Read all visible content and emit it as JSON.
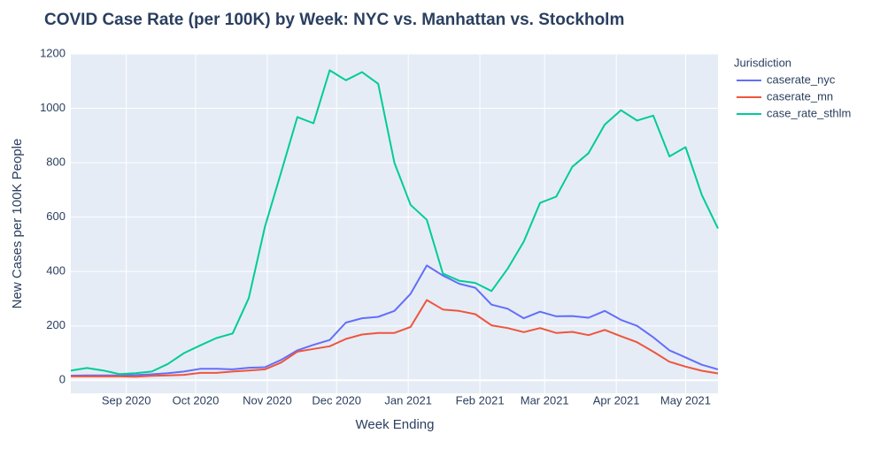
{
  "chart_data": {
    "type": "line",
    "title": "COVID Case Rate (per 100K) by Week: NYC vs. Manhattan vs. Stockholm",
    "x_label": "Week Ending",
    "y_label": "New Cases per 100K People",
    "legend_title": "Jurisdiction",
    "legend_position": "right",
    "grid": true,
    "x": [
      "2020-08-08",
      "2020-08-15",
      "2020-08-22",
      "2020-08-29",
      "2020-09-05",
      "2020-09-12",
      "2020-09-19",
      "2020-09-26",
      "2020-10-03",
      "2020-10-10",
      "2020-10-17",
      "2020-10-24",
      "2020-10-31",
      "2020-11-07",
      "2020-11-14",
      "2020-11-21",
      "2020-11-28",
      "2020-12-05",
      "2020-12-12",
      "2020-12-19",
      "2020-12-26",
      "2021-01-02",
      "2021-01-09",
      "2021-01-16",
      "2021-01-23",
      "2021-01-30",
      "2021-02-06",
      "2021-02-13",
      "2021-02-20",
      "2021-02-27",
      "2021-03-06",
      "2021-03-13",
      "2021-03-20",
      "2021-03-27",
      "2021-04-03",
      "2021-04-10",
      "2021-04-17",
      "2021-04-24",
      "2021-05-01",
      "2021-05-08",
      "2021-05-15"
    ],
    "xlim": [
      "2020-08-08",
      "2021-05-15"
    ],
    "xticks": [
      {
        "value": "2020-09-01",
        "label": "Sep 2020"
      },
      {
        "value": "2020-10-01",
        "label": "Oct 2020"
      },
      {
        "value": "2020-11-01",
        "label": "Nov 2020"
      },
      {
        "value": "2020-12-01",
        "label": "Dec 2020"
      },
      {
        "value": "2021-01-01",
        "label": "Jan 2021"
      },
      {
        "value": "2021-02-01",
        "label": "Feb 2021"
      },
      {
        "value": "2021-03-01",
        "label": "Mar 2021"
      },
      {
        "value": "2021-04-01",
        "label": "Apr 2021"
      },
      {
        "value": "2021-05-01",
        "label": "May 2021"
      }
    ],
    "ylim": [
      -48,
      1200
    ],
    "yticks": [
      0,
      200,
      400,
      600,
      800,
      1000,
      1200
    ],
    "series": [
      {
        "name": "caserate_nyc",
        "color": "#636efa",
        "values": [
          17,
          18,
          18,
          18,
          19,
          22,
          26,
          32,
          42,
          42,
          40,
          46,
          48,
          75,
          110,
          130,
          148,
          212,
          228,
          233,
          255,
          318,
          422,
          385,
          355,
          340,
          278,
          263,
          228,
          252,
          235,
          236,
          230,
          255,
          222,
          200,
          158,
          110,
          84,
          57,
          40
        ]
      },
      {
        "name": "caserate_mn",
        "color": "#ef553b",
        "values": [
          14,
          14,
          14,
          14,
          13,
          16,
          18,
          20,
          27,
          27,
          32,
          36,
          40,
          65,
          105,
          115,
          125,
          152,
          168,
          174,
          174,
          196,
          295,
          260,
          255,
          243,
          202,
          192,
          177,
          192,
          174,
          178,
          166,
          185,
          162,
          140,
          105,
          68,
          50,
          35,
          25
        ]
      },
      {
        "name": "case_rate_sthlm",
        "color": "#00cc96",
        "values": [
          36,
          45,
          36,
          23,
          26,
          32,
          60,
          100,
          128,
          155,
          172,
          302,
          565,
          765,
          968,
          945,
          1140,
          1103,
          1133,
          1090,
          800,
          645,
          590,
          392,
          366,
          358,
          328,
          410,
          510,
          652,
          675,
          785,
          835,
          940,
          993,
          955,
          973,
          823,
          857,
          682,
          558
        ]
      }
    ]
  }
}
